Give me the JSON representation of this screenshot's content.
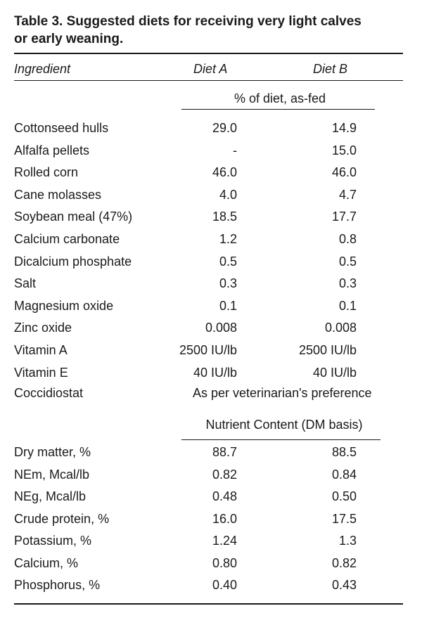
{
  "title": {
    "line1": "Table 3. Suggested diets for receiving very light calves",
    "line2": "or early weaning."
  },
  "header": {
    "ingredient": "Ingredient",
    "diet_a": "Diet A",
    "diet_b": "Diet B"
  },
  "section_asfed": "% of diet, as-fed",
  "section_nutrient": "Nutrient Content (DM basis)",
  "ingredients": [
    {
      "name": "Cottonseed hulls",
      "a": "29.0",
      "b": "14.9"
    },
    {
      "name": "Alfalfa pellets",
      "a": "-",
      "b": "15.0"
    },
    {
      "name": "Rolled corn",
      "a": "46.0",
      "b": "46.0"
    },
    {
      "name": "Cane molasses",
      "a": "4.0",
      "b": "4.7"
    },
    {
      "name": "Soybean meal (47%)",
      "a": "18.5",
      "b": "17.7"
    },
    {
      "name": "Calcium carbonate",
      "a": "1.2",
      "b": "0.8"
    },
    {
      "name": "Dicalcium phosphate",
      "a": "0.5",
      "b": "0.5"
    },
    {
      "name": "Salt",
      "a": "0.3",
      "b": "0.3"
    },
    {
      "name": "Magnesium oxide",
      "a": "0.1",
      "b": "0.1"
    },
    {
      "name": "Zinc oxide",
      "a": "0.008",
      "b": "0.008"
    },
    {
      "name": "Vitamin A",
      "a": "2500 IU/lb",
      "b": "2500 IU/lb"
    },
    {
      "name": "Vitamin E",
      "a": "40 IU/lb",
      "b": "40 IU/lb"
    }
  ],
  "coccidiostat": {
    "name": "Coccidiostat",
    "value": "As per veterinarian's preference"
  },
  "nutrients": [
    {
      "name": "Dry matter, %",
      "a": "88.7",
      "b": "88.5"
    },
    {
      "name": "NEm, Mcal/lb",
      "a": "0.82",
      "b": "0.84"
    },
    {
      "name": "NEg, Mcal/lb",
      "a": "0.48",
      "b": "0.50"
    },
    {
      "name": "Crude protein, %",
      "a": "16.0",
      "b": "17.5"
    },
    {
      "name": "Potassium, %",
      "a": "1.24",
      "b": "1.3"
    },
    {
      "name": "Calcium, %",
      "a": "0.80",
      "b": "0.82"
    },
    {
      "name": "Phosphorus, %",
      "a": "0.40",
      "b": "0.43"
    }
  ]
}
